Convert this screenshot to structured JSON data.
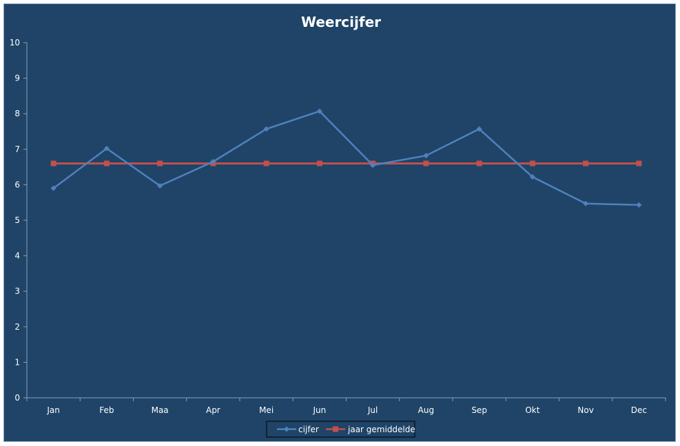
{
  "chart_data": {
    "type": "line",
    "title": "Weercijfer",
    "categories": [
      "Jan",
      "Feb",
      "Maa",
      "Apr",
      "Mei",
      "Jun",
      "Jul",
      "Aug",
      "Sep",
      "Okt",
      "Nov",
      "Dec"
    ],
    "series": [
      {
        "name": "cijfer",
        "color": "#4f81bd",
        "marker": "diamond",
        "values": [
          5.9,
          7.02,
          5.97,
          6.65,
          7.57,
          8.07,
          6.55,
          6.82,
          7.57,
          6.22,
          5.47,
          5.43
        ]
      },
      {
        "name": "jaar gemiddelde",
        "color": "#c0504d",
        "marker": "square",
        "values": [
          6.6,
          6.6,
          6.6,
          6.6,
          6.6,
          6.6,
          6.6,
          6.6,
          6.6,
          6.6,
          6.6,
          6.6
        ]
      }
    ],
    "ylim": [
      0,
      10
    ],
    "yticks": [
      "0",
      "1",
      "2",
      "3",
      "4",
      "5",
      "6",
      "7",
      "8",
      "9",
      "10"
    ],
    "xlabel": "",
    "ylabel": "",
    "grid": false,
    "legend": "bottom",
    "background": "#1f4467",
    "axis_color": "#8aa0b8"
  }
}
